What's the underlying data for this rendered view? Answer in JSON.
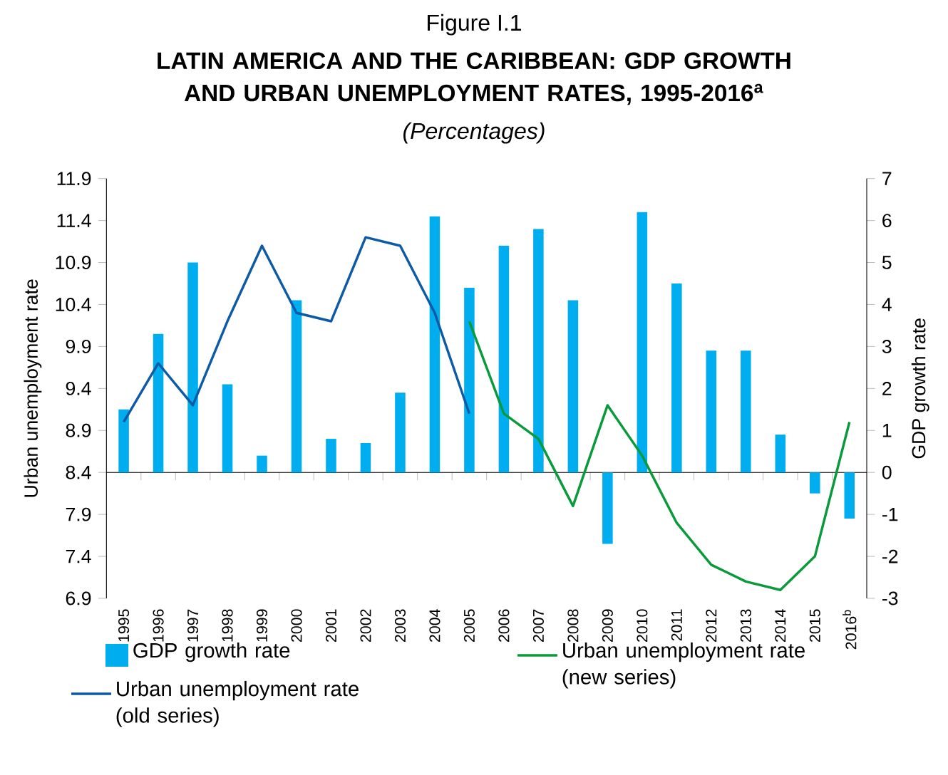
{
  "chart_data": {
    "type": "bar",
    "title": "LATIN AMERICA AND THE CARIBBEAN: GDP GROWTH AND URBAN UNEMPLOYMENT RATES, 1995-2016$^{a}$",
    "subtitle": "(Percentages)",
    "annotations": [
      "Figure I.1"
    ],
    "categories": [
      "1995",
      "1996",
      "1997",
      "1998",
      "1999",
      "2000",
      "2001",
      "2002",
      "2003",
      "2004",
      "2005",
      "2006",
      "2007",
      "2008",
      "2009",
      "2010",
      "2011",
      "2012",
      "2013",
      "2014",
      "2015",
      "2016$^{b}$"
    ],
    "series": [
      {
        "name": "GDP growth rate",
        "axis": "y2",
        "color": "#00aeef",
        "values": [
          1.5,
          3.3,
          5.0,
          2.1,
          0.4,
          4.1,
          0.8,
          0.7,
          1.9,
          6.1,
          4.4,
          5.4,
          5.8,
          4.1,
          -1.7,
          6.2,
          4.5,
          2.9,
          2.9,
          0.9,
          -0.5,
          -1.1
        ]
      },
      {
        "name": "Urban unemployment rate (new series)",
        "type": "line",
        "axis": "y",
        "color": "#0a9a3c",
        "values": [
          null,
          null,
          null,
          null,
          null,
          null,
          null,
          null,
          null,
          null,
          10.2,
          9.1,
          8.8,
          8.0,
          9.2,
          8.6,
          7.8,
          7.3,
          7.1,
          7.0,
          7.4,
          9.0
        ]
      },
      {
        "name": "Urban unemployment rate (old series)",
        "type": "line",
        "axis": "y",
        "color": "#0d5aa7",
        "values": [
          9.0,
          9.7,
          9.2,
          10.2,
          11.1,
          10.3,
          10.2,
          11.2,
          11.1,
          10.3,
          9.1,
          null,
          null,
          null,
          null,
          null,
          null,
          null,
          null,
          null,
          null,
          null
        ]
      }
    ],
    "ylabel": "Urban unemployment rate",
    "y2label": "GDP growth rate",
    "ylim": [
      6.9,
      11.9
    ],
    "yticks": [
      6.9,
      7.4,
      7.9,
      8.4,
      8.9,
      9.4,
      9.9,
      10.4,
      10.9,
      11.4,
      11.9
    ],
    "y2lim": [
      -3,
      7
    ],
    "y2ticks": [
      -3,
      -2,
      -1,
      0,
      1,
      2,
      3,
      4,
      5,
      6,
      7
    ],
    "legend": "bottom"
  }
}
